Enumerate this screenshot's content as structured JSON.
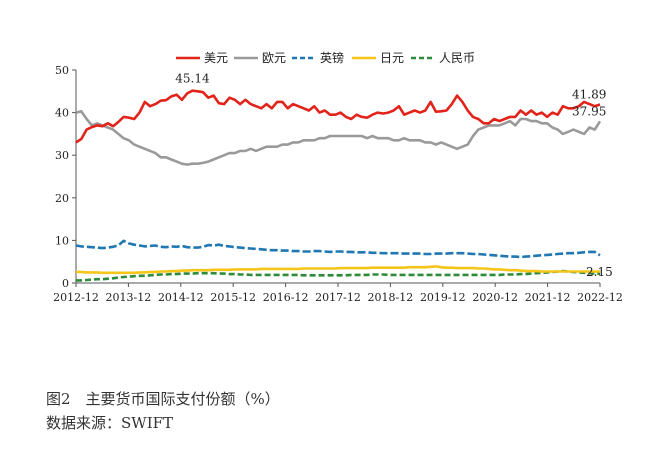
{
  "chart_data": {
    "type": "line",
    "ylim": [
      0,
      50
    ],
    "yticks": [
      "0",
      "10",
      "20",
      "30",
      "40",
      "50"
    ],
    "xticks": [
      "2012-12",
      "2013-12",
      "2014-12",
      "2015-12",
      "2016-12",
      "2017-12",
      "2018-12",
      "2019-12",
      "2020-12",
      "2021-12",
      "2022-12"
    ],
    "grid": false,
    "legend_position": "top",
    "series": [
      {
        "name": "美元",
        "color": "#e2231a",
        "dash": "solid",
        "width": 2.6,
        "values": [
          33.0,
          33.8,
          36.0,
          36.6,
          37.0,
          36.8,
          37.5,
          36.8,
          37.8,
          39.0,
          38.8,
          38.5,
          40.0,
          42.5,
          41.5,
          42.0,
          42.8,
          42.9,
          43.8,
          44.2,
          43.0,
          44.5,
          45.14,
          45.0,
          44.8,
          43.5,
          44.0,
          42.2,
          42.0,
          43.5,
          43.0,
          42.0,
          43.0,
          42.0,
          41.5,
          41.0,
          42.0,
          41.0,
          42.5,
          42.5,
          41.0,
          42.0,
          41.5,
          41.0,
          40.5,
          41.5,
          40.0,
          40.5,
          39.5,
          39.5,
          40.0,
          39.0,
          38.5,
          39.5,
          39.0,
          38.8,
          39.5,
          40.0,
          39.8,
          40.0,
          40.5,
          41.5,
          39.5,
          40.0,
          40.5,
          40.0,
          40.5,
          42.5,
          40.2,
          40.3,
          40.5,
          42.0,
          44.0,
          42.5,
          40.5,
          39.0,
          38.5,
          37.5,
          37.5,
          38.5,
          38.0,
          38.5,
          39.0,
          39.0,
          40.5,
          39.5,
          40.5,
          39.5,
          40.0,
          39.0,
          40.0,
          39.5,
          41.5,
          41.0,
          41.0,
          41.5,
          42.5,
          42.0,
          41.5,
          41.89
        ]
      },
      {
        "name": "欧元",
        "color": "#9a9a9a",
        "dash": "solid",
        "width": 2.6,
        "values": [
          40.0,
          40.3,
          38.5,
          37.0,
          37.5,
          37.0,
          36.5,
          36.0,
          35.0,
          34.0,
          33.5,
          32.5,
          32.0,
          31.5,
          31.0,
          30.5,
          29.5,
          29.5,
          29.0,
          28.5,
          28.0,
          27.8,
          28.0,
          28.0,
          28.2,
          28.5,
          29.0,
          29.5,
          30.0,
          30.5,
          30.5,
          31.0,
          31.0,
          31.5,
          31.0,
          31.5,
          32.0,
          32.0,
          32.0,
          32.5,
          32.5,
          33.0,
          33.0,
          33.5,
          33.5,
          33.5,
          34.0,
          34.0,
          34.5,
          34.5,
          34.5,
          34.5,
          34.5,
          34.5,
          34.5,
          34.0,
          34.5,
          34.0,
          34.0,
          34.0,
          33.5,
          33.5,
          34.0,
          33.5,
          33.5,
          33.5,
          33.0,
          33.0,
          32.5,
          33.0,
          32.5,
          32.0,
          31.5,
          32.0,
          32.5,
          34.5,
          36.0,
          36.5,
          37.0,
          37.0,
          37.0,
          37.5,
          38.0,
          37.0,
          38.5,
          38.5,
          38.0,
          38.0,
          37.5,
          37.5,
          36.5,
          36.0,
          35.0,
          35.5,
          36.0,
          35.5,
          35.0,
          36.5,
          36.0,
          37.95
        ]
      },
      {
        "name": "英镑",
        "color": "#1f77b4",
        "dash": "8,3",
        "width": 2.6,
        "values": [
          8.8,
          8.6,
          8.5,
          8.4,
          8.3,
          8.2,
          8.3,
          8.5,
          8.8,
          9.9,
          9.3,
          9.0,
          8.8,
          8.6,
          8.7,
          8.8,
          8.5,
          8.4,
          8.6,
          8.5,
          8.7,
          8.4,
          8.3,
          8.3,
          8.5,
          8.9,
          8.8,
          9.0,
          8.7,
          8.6,
          8.4,
          8.3,
          8.2,
          8.1,
          8.0,
          7.9,
          7.8,
          7.7,
          7.7,
          7.6,
          7.6,
          7.5,
          7.5,
          7.4,
          7.4,
          7.5,
          7.5,
          7.4,
          7.3,
          7.4,
          7.4,
          7.3,
          7.3,
          7.2,
          7.2,
          7.2,
          7.1,
          7.1,
          7.0,
          7.0,
          7.0,
          7.0,
          6.9,
          6.9,
          6.9,
          6.9,
          6.8,
          6.8,
          6.9,
          6.9,
          6.9,
          7.0,
          7.0,
          7.0,
          6.9,
          6.8,
          6.8,
          6.7,
          6.6,
          6.5,
          6.4,
          6.3,
          6.2,
          6.2,
          6.1,
          6.2,
          6.3,
          6.4,
          6.5,
          6.6,
          6.7,
          6.8,
          6.9,
          7.0,
          7.0,
          7.1,
          7.2,
          7.3,
          7.3,
          6.5
        ]
      },
      {
        "name": "日元",
        "color": "#f5c518",
        "dash": "solid",
        "width": 2.6,
        "values": [
          2.6,
          2.6,
          2.5,
          2.5,
          2.5,
          2.4,
          2.4,
          2.4,
          2.4,
          2.4,
          2.4,
          2.4,
          2.5,
          2.5,
          2.6,
          2.6,
          2.7,
          2.7,
          2.8,
          2.8,
          2.9,
          2.9,
          3.0,
          3.0,
          3.0,
          3.0,
          3.1,
          3.1,
          3.1,
          3.1,
          3.2,
          3.2,
          3.2,
          3.2,
          3.2,
          3.3,
          3.3,
          3.3,
          3.3,
          3.3,
          3.3,
          3.3,
          3.3,
          3.4,
          3.4,
          3.4,
          3.4,
          3.4,
          3.4,
          3.4,
          3.5,
          3.5,
          3.5,
          3.5,
          3.5,
          3.5,
          3.6,
          3.6,
          3.6,
          3.6,
          3.6,
          3.6,
          3.6,
          3.7,
          3.7,
          3.7,
          3.7,
          3.8,
          3.9,
          3.7,
          3.6,
          3.6,
          3.5,
          3.5,
          3.5,
          3.5,
          3.4,
          3.4,
          3.3,
          3.2,
          3.2,
          3.1,
          3.0,
          3.0,
          2.9,
          2.8,
          2.8,
          2.8,
          2.7,
          2.7,
          2.7,
          2.7,
          2.7,
          2.7,
          2.7,
          2.7,
          2.7,
          2.7,
          2.7,
          2.7
        ]
      },
      {
        "name": "人民币",
        "color": "#2e8b3a",
        "dash": "6,3",
        "width": 2.6,
        "values": [
          0.6,
          0.6,
          0.7,
          0.8,
          0.9,
          0.9,
          1.0,
          1.1,
          1.3,
          1.4,
          1.5,
          1.6,
          1.7,
          1.7,
          1.8,
          1.9,
          2.0,
          2.0,
          2.1,
          2.1,
          2.2,
          2.2,
          2.2,
          2.3,
          2.3,
          2.3,
          2.3,
          2.2,
          2.2,
          2.1,
          2.1,
          2.0,
          2.0,
          1.9,
          1.9,
          1.9,
          1.9,
          1.9,
          1.9,
          1.9,
          1.9,
          1.9,
          1.9,
          1.8,
          1.8,
          1.8,
          1.8,
          1.8,
          1.8,
          1.8,
          1.8,
          1.8,
          1.9,
          1.9,
          1.9,
          1.9,
          2.0,
          2.0,
          2.0,
          1.9,
          1.9,
          1.9,
          1.9,
          1.9,
          1.9,
          1.9,
          1.9,
          1.9,
          1.9,
          1.9,
          1.9,
          1.9,
          1.9,
          1.9,
          1.9,
          1.9,
          1.9,
          1.9,
          1.9,
          1.9,
          1.9,
          2.0,
          2.0,
          2.0,
          2.1,
          2.1,
          2.2,
          2.3,
          2.4,
          2.5,
          2.6,
          2.7,
          2.8,
          2.7,
          2.6,
          2.5,
          2.4,
          2.3,
          2.2,
          2.15
        ]
      }
    ],
    "annotations": [
      {
        "text": "45.14",
        "series": 0,
        "index": 22,
        "anchor": "above"
      },
      {
        "text": "41.89",
        "series": 0,
        "index": 99,
        "anchor": "above-right"
      },
      {
        "text": "37.95",
        "series": 1,
        "index": 99,
        "anchor": "above-right"
      },
      {
        "text": "2.15",
        "series": 4,
        "index": 99,
        "anchor": "right"
      }
    ]
  },
  "caption": "图2　主要货币国际支付份额（%）",
  "source": "数据来源：SWIFT"
}
